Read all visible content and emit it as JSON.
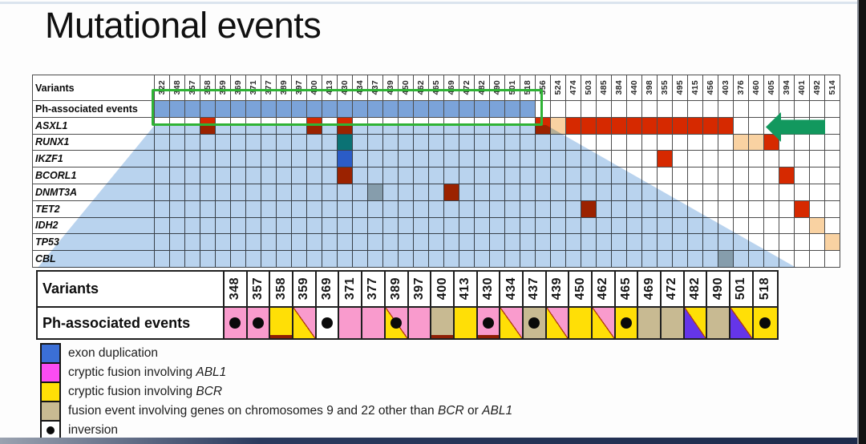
{
  "title": "Mutational events",
  "colors": {
    "red": "#d62900",
    "peach": "#f9d2a2",
    "teal": "#0e8a7c",
    "blue": "#3b6fd6",
    "gray": "#b9beb9",
    "ph_blue": "#7ba3d9",
    "overlay_blue": "#b9d3ee",
    "pink": "#f99bcd",
    "magenta": "#fb4cf2",
    "yellow": "#ffdf06",
    "tan": "#c8ba92",
    "purple": "#6535e8",
    "white": "#ffffff",
    "diag_line": "#b03a10",
    "dark_red_line": "#8e1f04",
    "green_box": "#2fb335",
    "green_arrow": "#12985e",
    "dot": "#0a0a0a"
  },
  "chart_data": {
    "type": "heatmap",
    "title": "Mutational events",
    "top_matrix": {
      "corner_label": "Variants",
      "ph_row_label": "Ph-associated events",
      "columns": [
        322,
        348,
        357,
        358,
        359,
        369,
        371,
        377,
        389,
        397,
        400,
        413,
        430,
        434,
        437,
        439,
        450,
        462,
        465,
        469,
        472,
        482,
        490,
        501,
        518,
        356,
        524,
        474,
        503,
        485,
        384,
        440,
        398,
        355,
        495,
        415,
        456,
        403,
        376,
        460,
        405,
        394,
        401,
        492,
        514
      ],
      "genes": [
        "ASXL1",
        "RUNX1",
        "IKZF1",
        "BCORL1",
        "DNMT3A",
        "TET2",
        "IDH2",
        "TP53",
        "CBL"
      ],
      "ph_filled_variants": [
        322,
        348,
        357,
        358,
        359,
        369,
        371,
        377,
        389,
        397,
        400,
        413,
        430,
        434,
        437,
        439,
        450,
        462,
        465,
        469,
        472,
        482,
        490,
        501,
        518
      ],
      "mutations": [
        {
          "gene": "ASXL1",
          "variant": 358,
          "color": "red"
        },
        {
          "gene": "ASXL1",
          "variant": 400,
          "color": "red"
        },
        {
          "gene": "ASXL1",
          "variant": 430,
          "color": "red"
        },
        {
          "gene": "ASXL1",
          "variant": 356,
          "color": "red"
        },
        {
          "gene": "ASXL1",
          "variant": 524,
          "color": "peach"
        },
        {
          "gene": "ASXL1",
          "variant": 474,
          "color": "red"
        },
        {
          "gene": "ASXL1",
          "variant": 503,
          "color": "red"
        },
        {
          "gene": "ASXL1",
          "variant": 485,
          "color": "red"
        },
        {
          "gene": "ASXL1",
          "variant": 384,
          "color": "red"
        },
        {
          "gene": "ASXL1",
          "variant": 440,
          "color": "red"
        },
        {
          "gene": "ASXL1",
          "variant": 398,
          "color": "red"
        },
        {
          "gene": "ASXL1",
          "variant": 355,
          "color": "red"
        },
        {
          "gene": "ASXL1",
          "variant": 495,
          "color": "red"
        },
        {
          "gene": "ASXL1",
          "variant": 415,
          "color": "red"
        },
        {
          "gene": "ASXL1",
          "variant": 456,
          "color": "red"
        },
        {
          "gene": "ASXL1",
          "variant": 403,
          "color": "red"
        },
        {
          "gene": "RUNX1",
          "variant": 430,
          "color": "teal"
        },
        {
          "gene": "RUNX1",
          "variant": 376,
          "color": "peach"
        },
        {
          "gene": "RUNX1",
          "variant": 460,
          "color": "peach"
        },
        {
          "gene": "RUNX1",
          "variant": 405,
          "color": "red"
        },
        {
          "gene": "IKZF1",
          "variant": 430,
          "color": "blue"
        },
        {
          "gene": "IKZF1",
          "variant": 355,
          "color": "red"
        },
        {
          "gene": "BCORL1",
          "variant": 430,
          "color": "red"
        },
        {
          "gene": "BCORL1",
          "variant": 394,
          "color": "red"
        },
        {
          "gene": "DNMT3A",
          "variant": 437,
          "color": "gray"
        },
        {
          "gene": "DNMT3A",
          "variant": 469,
          "color": "red"
        },
        {
          "gene": "TET2",
          "variant": 503,
          "color": "red"
        },
        {
          "gene": "TET2",
          "variant": 401,
          "color": "red"
        },
        {
          "gene": "IDH2",
          "variant": 492,
          "color": "peach"
        },
        {
          "gene": "TP53",
          "variant": 514,
          "color": "peach"
        },
        {
          "gene": "CBL",
          "variant": 403,
          "color": "gray"
        }
      ]
    },
    "bottom_matrix": {
      "corner_label": "Variants",
      "ph_row_label": "Ph-associated events",
      "columns": [
        348,
        357,
        358,
        359,
        369,
        371,
        377,
        389,
        397,
        400,
        413,
        430,
        434,
        437,
        439,
        450,
        462,
        465,
        469,
        472,
        482,
        490,
        501,
        518
      ],
      "events": [
        {
          "variant": 348,
          "fill": "pink",
          "dot": true
        },
        {
          "variant": 357,
          "fill": "pink",
          "dot": true
        },
        {
          "variant": 358,
          "fill": "yellow",
          "underline": true
        },
        {
          "variant": 359,
          "fill": "split_pink_yellow"
        },
        {
          "variant": 369,
          "fill": "white",
          "dot": true
        },
        {
          "variant": 371,
          "fill": "pink"
        },
        {
          "variant": 377,
          "fill": "pink"
        },
        {
          "variant": 389,
          "fill": "split_pink_yellow",
          "dot": true
        },
        {
          "variant": 397,
          "fill": "pink"
        },
        {
          "variant": 400,
          "fill": "tan",
          "underline": true
        },
        {
          "variant": 413,
          "fill": "yellow"
        },
        {
          "variant": 430,
          "fill": "pink",
          "dot": true,
          "underline": true
        },
        {
          "variant": 434,
          "fill": "split_pink_yellow"
        },
        {
          "variant": 437,
          "fill": "tan",
          "dot": true
        },
        {
          "variant": 439,
          "fill": "split_pink_yellow"
        },
        {
          "variant": 450,
          "fill": "yellow"
        },
        {
          "variant": 462,
          "fill": "split_pink_yellow"
        },
        {
          "variant": 465,
          "fill": "yellow",
          "dot": true
        },
        {
          "variant": 469,
          "fill": "tan"
        },
        {
          "variant": 472,
          "fill": "tan"
        },
        {
          "variant": 482,
          "fill": "split_yellow_purple"
        },
        {
          "variant": 490,
          "fill": "tan"
        },
        {
          "variant": 501,
          "fill": "split_yellow_purple"
        },
        {
          "variant": 518,
          "fill": "yellow",
          "dot": true
        }
      ]
    },
    "legend": [
      {
        "swatch": "blue",
        "segments": [
          {
            "text": "exon duplication",
            "italic": false
          }
        ]
      },
      {
        "swatch": "magenta",
        "segments": [
          {
            "text": "cryptic fusion involving ",
            "italic": false
          },
          {
            "text": "ABL1",
            "italic": true
          }
        ]
      },
      {
        "swatch": "yellow",
        "segments": [
          {
            "text": "cryptic fusion involving ",
            "italic": false
          },
          {
            "text": "BCR",
            "italic": true
          }
        ]
      },
      {
        "swatch": "tan",
        "segments": [
          {
            "text": "fusion event involving genes  on chromosomes  9 and 22 other than ",
            "italic": false
          },
          {
            "text": "BCR",
            "italic": true
          },
          {
            "text": " or ",
            "italic": false
          },
          {
            "text": "ABL1",
            "italic": true
          }
        ]
      },
      {
        "swatch": "inversion_dot",
        "segments": [
          {
            "text": "inversion",
            "italic": false
          }
        ]
      }
    ]
  }
}
